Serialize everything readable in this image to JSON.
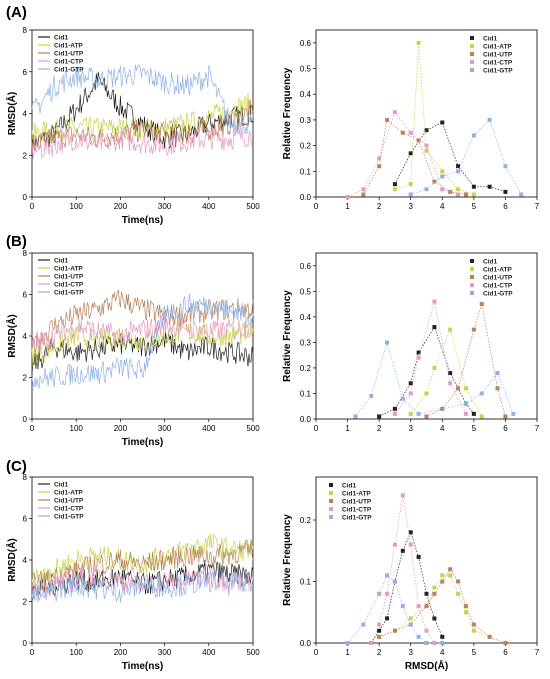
{
  "panel_letters": [
    "(A)",
    "(B)",
    "(C)"
  ],
  "colors": {
    "Cid1": "#222222",
    "Cid1-ATP": "#c8d24a",
    "Cid1-UTP": "#b9825a",
    "Cid1-CTP": "#e79ac0",
    "Cid1-GTP": "#8fb2e6"
  },
  "chart_data": [
    {
      "type": "line",
      "panel": "(A)",
      "xlabel": "Time(ns)",
      "ylabel": "RMSD(Å)",
      "xlim": [
        0,
        500
      ],
      "ylim": [
        0,
        8
      ],
      "xticks": [
        0,
        100,
        200,
        300,
        400,
        500
      ],
      "yticks": [
        0,
        2,
        4,
        6,
        8
      ],
      "legend_position": "top-left",
      "series": [
        {
          "name": "Cid1",
          "x": [
            0,
            50,
            100,
            150,
            200,
            250,
            300,
            350,
            400,
            450,
            500
          ],
          "values": [
            2.5,
            3.0,
            4.2,
            5.6,
            4.3,
            3.5,
            2.8,
            3.0,
            3.5,
            3.8,
            4.0
          ]
        },
        {
          "name": "Cid1-ATP",
          "x": [
            0,
            50,
            100,
            150,
            200,
            250,
            300,
            350,
            400,
            450,
            500
          ],
          "values": [
            3.0,
            3.2,
            3.3,
            3.3,
            3.3,
            3.3,
            3.3,
            3.5,
            3.8,
            4.2,
            4.5
          ]
        },
        {
          "name": "Cid1-UTP",
          "x": [
            0,
            50,
            100,
            150,
            200,
            250,
            300,
            350,
            400,
            450,
            500
          ],
          "values": [
            2.5,
            2.8,
            3.0,
            2.8,
            3.0,
            3.2,
            3.0,
            3.0,
            3.2,
            3.5,
            4.2
          ]
        },
        {
          "name": "Cid1-CTP",
          "x": [
            0,
            50,
            100,
            150,
            200,
            250,
            300,
            350,
            400,
            450,
            500
          ],
          "values": [
            2.2,
            2.5,
            2.8,
            2.5,
            2.8,
            2.6,
            2.5,
            2.7,
            2.8,
            2.8,
            3.0
          ]
        },
        {
          "name": "Cid1-GTP",
          "x": [
            0,
            50,
            100,
            150,
            200,
            250,
            300,
            350,
            400,
            450,
            500
          ],
          "values": [
            4.0,
            5.3,
            5.8,
            5.6,
            5.8,
            5.9,
            5.5,
            5.3,
            5.8,
            3.5,
            3.5
          ]
        }
      ]
    },
    {
      "type": "line",
      "panel": "(A)",
      "xlabel": "",
      "ylabel": "Relative Frequency",
      "xlim": [
        0,
        7
      ],
      "ylim": [
        0,
        0.65
      ],
      "xticks": [
        0,
        1,
        2,
        3,
        4,
        5,
        6,
        7
      ],
      "yticks": [
        0.0,
        0.1,
        0.2,
        0.3,
        0.4,
        0.5,
        0.6
      ],
      "legend_position": "top-right",
      "series": [
        {
          "name": "Cid1",
          "x": [
            2.5,
            3,
            3.5,
            4,
            4.5,
            5,
            5.5,
            6
          ],
          "values": [
            0.05,
            0.17,
            0.26,
            0.29,
            0.12,
            0.04,
            0.04,
            0.02
          ]
        },
        {
          "name": "Cid1-ATP",
          "x": [
            2.5,
            3,
            3.25,
            3.5,
            4,
            4.5,
            5
          ],
          "values": [
            0.03,
            0.05,
            0.6,
            0.18,
            0.1,
            0.03,
            0.01
          ]
        },
        {
          "name": "Cid1-UTP",
          "x": [
            1.5,
            2,
            2.25,
            2.75,
            3.25,
            3.75,
            4.25,
            4.75
          ],
          "values": [
            0.01,
            0.12,
            0.3,
            0.25,
            0.22,
            0.06,
            0.02,
            0.01
          ]
        },
        {
          "name": "Cid1-CTP",
          "x": [
            1,
            1.5,
            2,
            2.5,
            3,
            3.5,
            4,
            4.5
          ],
          "values": [
            0.0,
            0.03,
            0.15,
            0.33,
            0.25,
            0.2,
            0.03,
            0.01
          ]
        },
        {
          "name": "Cid1-GTP",
          "x": [
            3,
            3.5,
            4,
            4.5,
            5,
            5.5,
            6,
            6.5
          ],
          "values": [
            0.01,
            0.03,
            0.08,
            0.1,
            0.24,
            0.3,
            0.12,
            0.01
          ]
        }
      ]
    },
    {
      "type": "line",
      "panel": "(B)",
      "xlabel": "Time(ns)",
      "ylabel": "RMSD(Å)",
      "xlim": [
        0,
        500
      ],
      "ylim": [
        0,
        8
      ],
      "xticks": [
        0,
        100,
        200,
        300,
        400,
        500
      ],
      "yticks": [
        0,
        2,
        4,
        6,
        8
      ],
      "legend_position": "top-left",
      "series": [
        {
          "name": "Cid1",
          "x": [
            0,
            50,
            100,
            150,
            200,
            250,
            300,
            350,
            400,
            450,
            500
          ],
          "values": [
            2.5,
            3.5,
            3.2,
            3.4,
            3.6,
            3.5,
            3.8,
            3.2,
            3.5,
            3.2,
            3.0
          ]
        },
        {
          "name": "Cid1-ATP",
          "x": [
            0,
            50,
            100,
            150,
            200,
            250,
            300,
            350,
            400,
            450,
            500
          ],
          "values": [
            3.0,
            3.5,
            4.0,
            3.8,
            4.0,
            3.8,
            4.0,
            4.2,
            4.0,
            4.0,
            4.2
          ]
        },
        {
          "name": "Cid1-UTP",
          "x": [
            0,
            50,
            100,
            150,
            200,
            250,
            300,
            350,
            400,
            450,
            500
          ],
          "values": [
            3.5,
            4.5,
            5.0,
            5.3,
            5.8,
            5.3,
            5.0,
            5.0,
            5.2,
            5.3,
            5.3
          ]
        },
        {
          "name": "Cid1-CTP",
          "x": [
            0,
            50,
            100,
            150,
            200,
            250,
            300,
            350,
            400,
            450,
            500
          ],
          "values": [
            3.5,
            4.0,
            4.5,
            4.2,
            4.0,
            4.3,
            4.5,
            4.4,
            4.2,
            4.3,
            4.5
          ]
        },
        {
          "name": "Cid1-GTP",
          "x": [
            0,
            50,
            100,
            150,
            200,
            250,
            300,
            350,
            400,
            450,
            500
          ],
          "values": [
            2.0,
            2.0,
            2.2,
            2.2,
            2.5,
            2.3,
            5.0,
            5.5,
            5.5,
            5.2,
            5.0
          ]
        }
      ]
    },
    {
      "type": "line",
      "panel": "(B)",
      "xlabel": "",
      "ylabel": "Relative Frequency",
      "xlim": [
        0,
        7
      ],
      "ylim": [
        0,
        0.65
      ],
      "xticks": [
        0,
        1,
        2,
        3,
        4,
        5,
        6,
        7
      ],
      "yticks": [
        0.0,
        0.1,
        0.2,
        0.3,
        0.4,
        0.5,
        0.6
      ],
      "legend_position": "top-right",
      "series": [
        {
          "name": "Cid1",
          "x": [
            2,
            2.5,
            3,
            3.25,
            3.75,
            4.25,
            4.75,
            5
          ],
          "values": [
            0.01,
            0.04,
            0.14,
            0.26,
            0.36,
            0.18,
            0.06,
            0.02
          ]
        },
        {
          "name": "Cid1-ATP",
          "x": [
            3,
            3.5,
            3.75,
            4.25,
            4.75,
            5.25
          ],
          "values": [
            0.02,
            0.1,
            0.2,
            0.35,
            0.12,
            0.01
          ]
        },
        {
          "name": "Cid1-UTP",
          "x": [
            3.5,
            4,
            4.5,
            5,
            5.25,
            5.75,
            6
          ],
          "values": [
            0.01,
            0.04,
            0.12,
            0.35,
            0.45,
            0.12,
            0.01
          ]
        },
        {
          "name": "Cid1-CTP",
          "x": [
            2.5,
            3,
            3.25,
            3.75,
            4.25,
            4.75
          ],
          "values": [
            0.02,
            0.1,
            0.24,
            0.46,
            0.14,
            0.02
          ]
        },
        {
          "name": "Cid1-GTP",
          "x": [
            1.25,
            1.75,
            2.25,
            2.75,
            3.25,
            4.75,
            5.25,
            5.75,
            6.25
          ],
          "values": [
            0.01,
            0.09,
            0.3,
            0.08,
            0.02,
            0.06,
            0.1,
            0.18,
            0.02
          ]
        }
      ]
    },
    {
      "type": "line",
      "panel": "(C)",
      "xlabel": "Time(ns)",
      "ylabel": "RMSD(Å)",
      "xlim": [
        0,
        500
      ],
      "ylim": [
        0,
        8
      ],
      "xticks": [
        0,
        100,
        200,
        300,
        400,
        500
      ],
      "yticks": [
        0,
        2,
        4,
        6,
        8
      ],
      "legend_position": "top-left",
      "series": [
        {
          "name": "Cid1",
          "x": [
            0,
            50,
            100,
            150,
            200,
            250,
            300,
            350,
            400,
            450,
            500
          ],
          "values": [
            2.5,
            2.8,
            3.0,
            3.0,
            3.2,
            2.8,
            3.0,
            3.2,
            3.5,
            3.3,
            3.2
          ]
        },
        {
          "name": "Cid1-ATP",
          "x": [
            0,
            50,
            100,
            150,
            200,
            250,
            300,
            350,
            400,
            450,
            500
          ],
          "values": [
            3.0,
            3.5,
            4.0,
            4.2,
            4.0,
            3.8,
            4.2,
            4.5,
            4.8,
            4.5,
            4.5
          ]
        },
        {
          "name": "Cid1-UTP",
          "x": [
            0,
            50,
            100,
            150,
            200,
            250,
            300,
            350,
            400,
            450,
            500
          ],
          "values": [
            2.8,
            3.2,
            3.5,
            3.8,
            4.0,
            3.8,
            4.0,
            4.2,
            4.2,
            4.3,
            4.5
          ]
        },
        {
          "name": "Cid1-CTP",
          "x": [
            0,
            50,
            100,
            150,
            200,
            250,
            300,
            350,
            400,
            450,
            500
          ],
          "values": [
            2.5,
            2.8,
            3.0,
            3.2,
            3.0,
            2.8,
            3.0,
            3.0,
            3.2,
            3.0,
            3.0
          ]
        },
        {
          "name": "Cid1-GTP",
          "x": [
            0,
            50,
            100,
            150,
            200,
            250,
            300,
            350,
            400,
            450,
            500
          ],
          "values": [
            2.2,
            2.5,
            2.8,
            2.6,
            2.5,
            2.8,
            2.7,
            2.8,
            3.0,
            2.8,
            3.0
          ]
        }
      ]
    },
    {
      "type": "line",
      "panel": "(C)",
      "xlabel": "RMSD(Å)",
      "ylabel": "Relative Frequency",
      "xlim": [
        0,
        7
      ],
      "ylim": [
        0,
        0.27
      ],
      "xticks": [
        0,
        1,
        2,
        3,
        4,
        5,
        6,
        7
      ],
      "yticks": [
        0.0,
        0.1,
        0.2
      ],
      "legend_position": "top-left",
      "series": [
        {
          "name": "Cid1",
          "x": [
            1.75,
            2,
            2.25,
            2.5,
            2.75,
            3,
            3.25,
            3.5,
            3.75,
            4
          ],
          "values": [
            0.0,
            0.02,
            0.04,
            0.1,
            0.15,
            0.18,
            0.14,
            0.08,
            0.04,
            0.01
          ]
        },
        {
          "name": "Cid1-ATP",
          "x": [
            2,
            2.5,
            3,
            3.5,
            3.75,
            4,
            4.25,
            4.5,
            4.75,
            5,
            5.5
          ],
          "values": [
            0.01,
            0.02,
            0.04,
            0.06,
            0.09,
            0.11,
            0.11,
            0.08,
            0.05,
            0.02,
            0.01
          ]
        },
        {
          "name": "Cid1-UTP",
          "x": [
            2,
            2.5,
            3,
            3.5,
            3.75,
            4,
            4.25,
            4.5,
            4.75,
            5,
            5.5,
            6
          ],
          "values": [
            0.01,
            0.02,
            0.03,
            0.06,
            0.08,
            0.1,
            0.12,
            0.1,
            0.06,
            0.03,
            0.01,
            0.0
          ]
        },
        {
          "name": "Cid1-CTP",
          "x": [
            1.75,
            2,
            2.25,
            2.5,
            2.75,
            3,
            3.25,
            3.5,
            3.75
          ],
          "values": [
            0.0,
            0.03,
            0.08,
            0.16,
            0.24,
            0.16,
            0.06,
            0.02,
            0.0
          ]
        },
        {
          "name": "Cid1-GTP",
          "x": [
            1,
            1.5,
            2,
            2.25,
            2.5,
            2.75,
            3,
            3.25,
            3.5,
            4
          ],
          "values": [
            0.0,
            0.03,
            0.08,
            0.11,
            0.1,
            0.06,
            0.03,
            0.01,
            0.0,
            0.0
          ]
        }
      ]
    }
  ]
}
